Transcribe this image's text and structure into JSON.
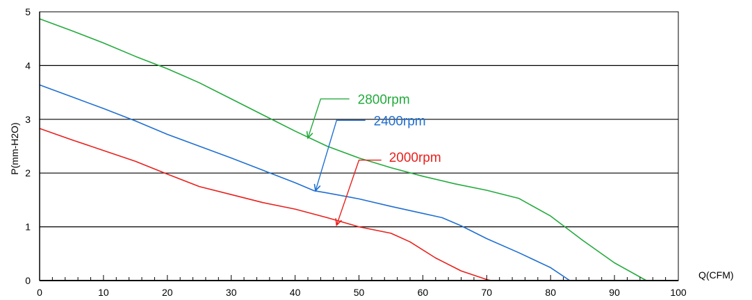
{
  "chart_data": {
    "type": "line",
    "xlabel": "Q(CFM)",
    "ylabel": "P(mm-H2O)",
    "xlim": [
      0,
      100
    ],
    "ylim": [
      0,
      5
    ],
    "xticks": [
      "0",
      "10",
      "20",
      "30",
      "40",
      "50",
      "60",
      "70",
      "80",
      "90",
      "100"
    ],
    "yticks": [
      "0",
      "1",
      "2",
      "3",
      "4",
      "5"
    ],
    "grid": "horizontal lines at every y tick",
    "series": [
      {
        "name": "2800rpm",
        "color": "#22aa3c",
        "points": [
          [
            0,
            4.87
          ],
          [
            5,
            4.65
          ],
          [
            10,
            4.42
          ],
          [
            15,
            4.17
          ],
          [
            20,
            3.94
          ],
          [
            25,
            3.68
          ],
          [
            30,
            3.38
          ],
          [
            35,
            3.08
          ],
          [
            40,
            2.78
          ],
          [
            45,
            2.5
          ],
          [
            50,
            2.28
          ],
          [
            55,
            2.1
          ],
          [
            60,
            1.94
          ],
          [
            65,
            1.8
          ],
          [
            70,
            1.68
          ],
          [
            75,
            1.53
          ],
          [
            80,
            1.2
          ],
          [
            85,
            0.75
          ],
          [
            90,
            0.33
          ],
          [
            95,
            0.0
          ]
        ]
      },
      {
        "name": "2400rpm",
        "color": "#1f6fd1",
        "points": [
          [
            0,
            3.64
          ],
          [
            5,
            3.42
          ],
          [
            10,
            3.2
          ],
          [
            15,
            2.97
          ],
          [
            20,
            2.72
          ],
          [
            25,
            2.5
          ],
          [
            30,
            2.28
          ],
          [
            35,
            2.05
          ],
          [
            40,
            1.82
          ],
          [
            43,
            1.67
          ],
          [
            45,
            1.63
          ],
          [
            50,
            1.52
          ],
          [
            55,
            1.38
          ],
          [
            60,
            1.25
          ],
          [
            63,
            1.17
          ],
          [
            66,
            1.02
          ],
          [
            70,
            0.78
          ],
          [
            75,
            0.52
          ],
          [
            80,
            0.24
          ],
          [
            83,
            0.0
          ]
        ]
      },
      {
        "name": "2000rpm",
        "color": "#e8201c",
        "points": [
          [
            0,
            2.83
          ],
          [
            5,
            2.62
          ],
          [
            10,
            2.42
          ],
          [
            15,
            2.22
          ],
          [
            20,
            1.98
          ],
          [
            25,
            1.75
          ],
          [
            30,
            1.6
          ],
          [
            35,
            1.45
          ],
          [
            40,
            1.33
          ],
          [
            45,
            1.17
          ],
          [
            50,
            1.0
          ],
          [
            55,
            0.88
          ],
          [
            58,
            0.72
          ],
          [
            62,
            0.42
          ],
          [
            66,
            0.18
          ],
          [
            70,
            0.02
          ],
          [
            70.7,
            0.0
          ]
        ]
      }
    ],
    "annotations": [
      {
        "text": "2800rpm",
        "series": "2800rpm",
        "color": "#22aa3c",
        "text_at": [
          49.8,
          3.38
        ],
        "path": [
          [
            48.5,
            3.38
          ],
          [
            44,
            3.38
          ],
          [
            42,
            2.65
          ]
        ]
      },
      {
        "text": "2400rpm",
        "series": "2400rpm",
        "color": "#1f6fd1",
        "text_at": [
          52.3,
          2.98
        ],
        "path": [
          [
            51,
            2.98
          ],
          [
            46.5,
            2.98
          ],
          [
            43.2,
            1.67
          ]
        ]
      },
      {
        "text": "2000rpm",
        "series": "2000rpm",
        "color": "#e8201c",
        "text_at": [
          54.7,
          2.3
        ],
        "path": [
          [
            53.5,
            2.24
          ],
          [
            50,
            2.24
          ],
          [
            46.5,
            1.03
          ]
        ]
      }
    ]
  }
}
